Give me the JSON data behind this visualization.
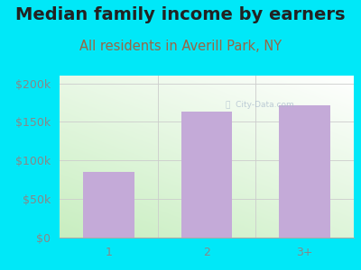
{
  "title": "Median family income by earners",
  "subtitle": "All residents in Averill Park, NY",
  "categories": [
    "1",
    "2",
    "3+"
  ],
  "values": [
    85000,
    163000,
    172000
  ],
  "bar_color": "#c4aad8",
  "background_outer": "#00e8f8",
  "title_color": "#222222",
  "subtitle_color": "#996644",
  "tick_color": "#888888",
  "ylim": [
    0,
    210000
  ],
  "yticks": [
    0,
    50000,
    100000,
    150000,
    200000
  ],
  "ytick_labels": [
    "$0",
    "$50k",
    "$100k",
    "$150k",
    "$200k"
  ],
  "title_fontsize": 14,
  "subtitle_fontsize": 10.5,
  "tick_fontsize": 9,
  "gradient_colors": [
    "#d8eed0",
    "#f5fff8",
    "#ffffff"
  ],
  "grid_color": "#cccccc",
  "watermark_color": "#aabbcc"
}
